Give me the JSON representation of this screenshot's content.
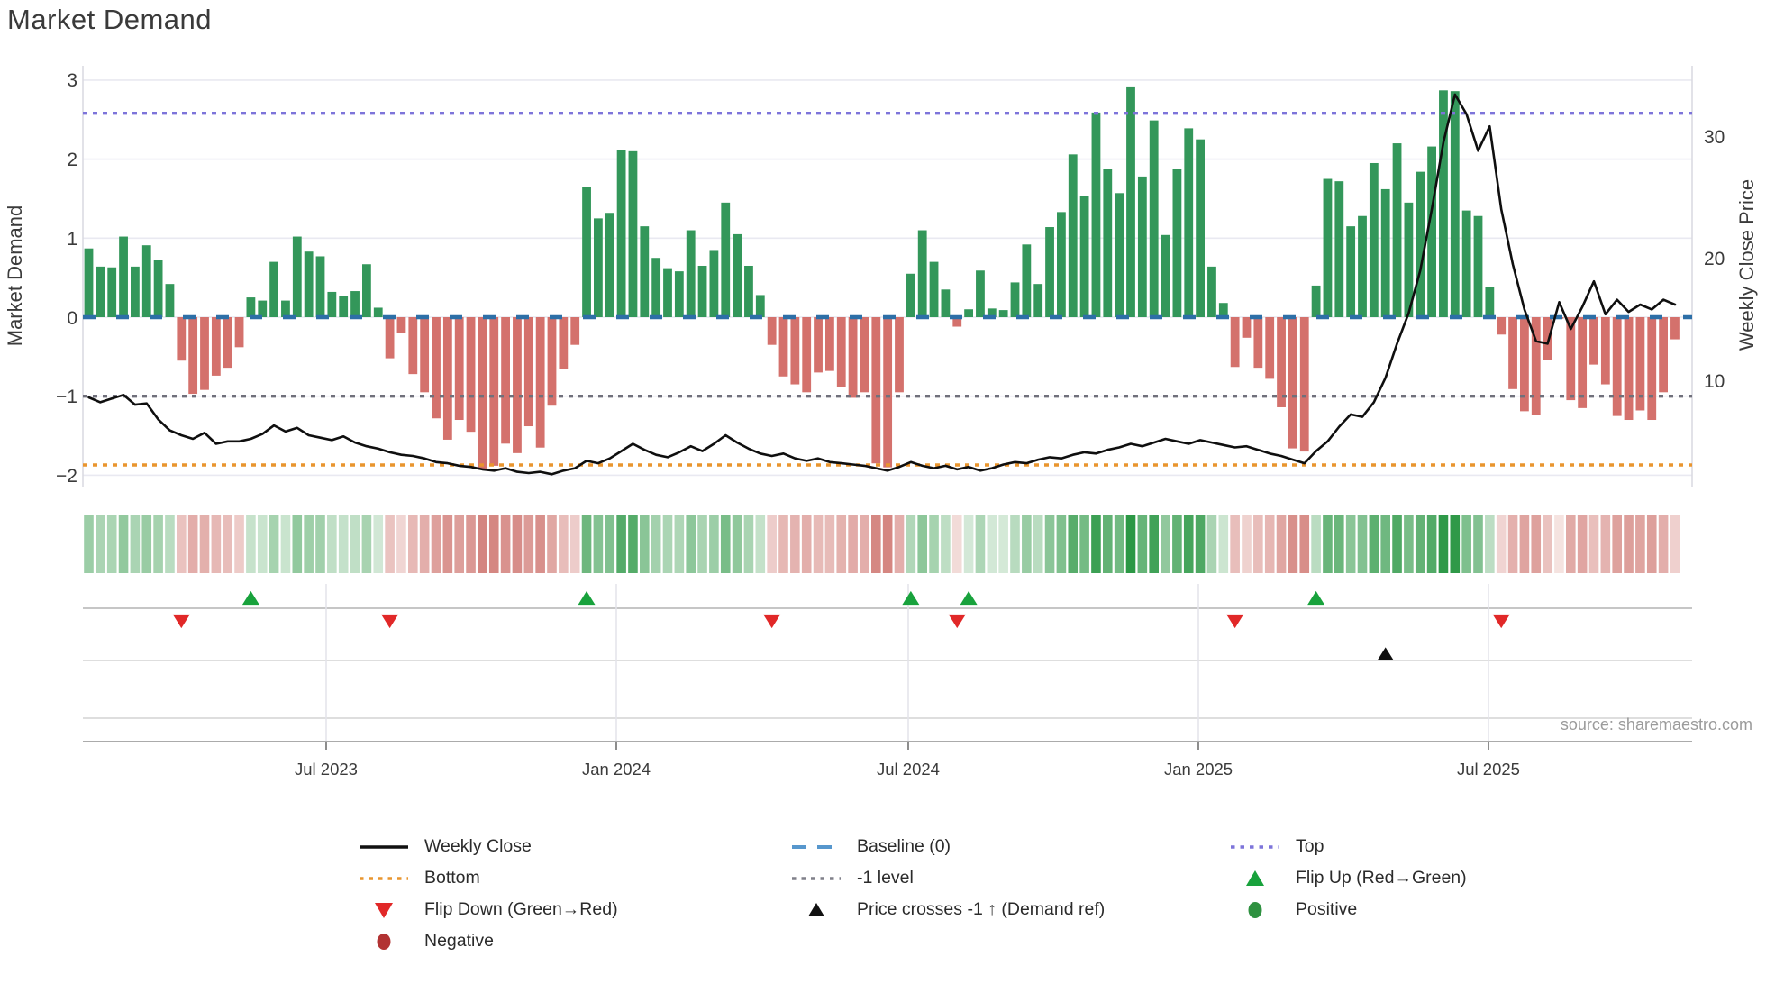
{
  "title": "Market Demand",
  "source_text": "source: sharemaestro.com",
  "colors": {
    "bar_positive": "#33975a",
    "bar_negative": "#d4716c",
    "price_line": "#0f0f0f",
    "baseline": "#2d6fa7",
    "top_line": "#7d74da",
    "minus1_line": "#70707b",
    "bottom_line": "#e9952f",
    "flip_up": "#18a23c",
    "flip_down": "#e12828",
    "price_cross": "#101010",
    "positive_dot": "#2e9140",
    "negative_dot": "#b23333",
    "grid": "#e9e9f1",
    "axis_text": "#3b3b3b",
    "source_text": "#9b9b9b"
  },
  "chart_data": {
    "type": "combo",
    "title": "Market Demand",
    "x_tick_labels": [
      "Jul 2023",
      "Jan 2024",
      "Jul 2024",
      "Jan 2025",
      "Jul 2025"
    ],
    "y_left": {
      "label": "Market Demand",
      "ticks": [
        "3",
        "2",
        "1",
        "0",
        "−1",
        "−2"
      ],
      "tick_values": [
        3,
        2,
        1,
        0,
        -1,
        -2
      ],
      "range": [
        -2.15,
        3.18
      ]
    },
    "y_right": {
      "label": "Weekly Close Price",
      "ticks": [
        "30",
        "20",
        "10"
      ],
      "tick_values": [
        30,
        20,
        10
      ],
      "range": [
        1.3,
        35.8
      ]
    },
    "grid": true,
    "legend_position": "bottom",
    "ref_lines": [
      {
        "name": "Top",
        "value": 2.58,
        "style": "dotted",
        "color": "#7d74da"
      },
      {
        "name": "Baseline (0)",
        "value": 0,
        "style": "dashed",
        "color": "#2d6fa7"
      },
      {
        "name": "-1 level",
        "value": -1,
        "style": "dotted",
        "color": "#70707b"
      },
      {
        "name": "Bottom",
        "value": -1.87,
        "style": "dotted",
        "color": "#e9952f"
      }
    ],
    "series": [
      {
        "name": "Market Demand",
        "type": "bar",
        "axis": "left",
        "values": [
          0.87,
          0.64,
          0.63,
          1.02,
          0.64,
          0.91,
          0.72,
          0.42,
          -0.55,
          -0.97,
          -0.92,
          -0.74,
          -0.64,
          -0.38,
          0.25,
          0.21,
          0.7,
          0.21,
          1.02,
          0.83,
          0.77,
          0.32,
          0.27,
          0.33,
          0.67,
          0.12,
          -0.52,
          -0.2,
          -0.72,
          -0.95,
          -1.28,
          -1.55,
          -1.3,
          -1.45,
          -1.93,
          -1.88,
          -1.6,
          -1.72,
          -1.38,
          -1.65,
          -1.12,
          -0.65,
          -0.35,
          1.65,
          1.25,
          1.32,
          2.12,
          2.1,
          1.15,
          0.75,
          0.62,
          0.58,
          1.1,
          0.65,
          0.85,
          1.45,
          1.05,
          0.65,
          0.28,
          -0.35,
          -0.75,
          -0.85,
          -0.95,
          -0.7,
          -0.68,
          -0.88,
          -1.02,
          -0.95,
          -1.85,
          -1.9,
          -0.95,
          0.55,
          1.1,
          0.7,
          0.35,
          -0.12,
          0.1,
          0.59,
          0.11,
          0.09,
          0.44,
          0.92,
          0.42,
          1.14,
          1.33,
          2.06,
          1.53,
          2.59,
          1.87,
          1.57,
          2.92,
          1.78,
          2.49,
          1.04,
          1.87,
          2.39,
          2.25,
          0.64,
          0.18,
          -0.63,
          -0.26,
          -0.64,
          -0.78,
          -1.14,
          -1.66,
          -1.7,
          0.4,
          1.75,
          1.72,
          1.15,
          1.28,
          1.95,
          1.62,
          2.2,
          1.45,
          1.84,
          2.16,
          2.87,
          2.86,
          1.35,
          1.28,
          0.38,
          -0.22,
          -0.91,
          -1.19,
          -1.24,
          -0.54,
          -0.02,
          -1.05,
          -1.15,
          -0.6,
          -0.85,
          -1.25,
          -1.3,
          -1.18,
          -1.3,
          -0.95,
          -0.28
        ]
      },
      {
        "name": "Weekly Close",
        "type": "line",
        "axis": "right",
        "values": [
          8.6,
          8.2,
          8.5,
          8.8,
          8.0,
          8.1,
          6.8,
          5.9,
          5.5,
          5.2,
          5.7,
          4.8,
          5.0,
          5.0,
          5.2,
          5.6,
          6.3,
          5.8,
          6.1,
          5.5,
          5.3,
          5.1,
          5.4,
          4.9,
          4.6,
          4.4,
          4.1,
          3.9,
          3.8,
          3.6,
          3.3,
          3.2,
          3.0,
          2.9,
          2.7,
          2.6,
          2.8,
          2.5,
          2.4,
          2.5,
          2.3,
          2.6,
          2.8,
          3.4,
          3.2,
          3.6,
          4.2,
          4.8,
          4.3,
          3.9,
          3.7,
          4.1,
          4.6,
          4.2,
          4.8,
          5.5,
          4.9,
          4.4,
          4.0,
          3.8,
          4.0,
          3.6,
          3.4,
          3.6,
          3.3,
          3.2,
          3.1,
          3.0,
          2.8,
          2.6,
          2.9,
          3.3,
          3.0,
          2.8,
          3.0,
          2.7,
          2.9,
          2.6,
          2.8,
          3.1,
          3.3,
          3.2,
          3.5,
          3.7,
          3.6,
          3.9,
          4.1,
          4.0,
          4.3,
          4.5,
          4.8,
          4.6,
          4.9,
          5.2,
          5.0,
          4.8,
          5.1,
          4.9,
          4.7,
          4.5,
          4.6,
          4.3,
          4.0,
          3.8,
          3.5,
          3.2,
          4.2,
          5.0,
          6.2,
          7.2,
          7.0,
          8.2,
          10.2,
          13.0,
          15.5,
          19.0,
          24.0,
          29.5,
          33.4,
          31.8,
          28.8,
          30.8,
          24.0,
          19.5,
          15.8,
          13.2,
          13.0,
          16.4,
          14.2,
          16.0,
          18.1,
          15.4,
          16.6,
          15.6,
          16.2,
          15.8,
          16.6,
          16.2
        ]
      }
    ],
    "markers": {
      "flip_up_weeks": [
        14,
        43,
        71,
        76,
        106
      ],
      "flip_down_weeks": [
        8,
        26,
        59,
        75,
        99,
        122
      ],
      "price_cross_weeks": [
        112
      ]
    },
    "heatmap_note": "strip cells mirror weekly demand sign and intensity (green positive, red negative)"
  },
  "legend": {
    "items": [
      {
        "label": "Weekly Close",
        "swatch": "line-black"
      },
      {
        "label": "Baseline (0)",
        "swatch": "dash-blue"
      },
      {
        "label": "Top",
        "swatch": "dot-purple"
      },
      {
        "label": "Bottom",
        "swatch": "dot-orange"
      },
      {
        "label": "-1 level",
        "swatch": "dot-gray"
      },
      {
        "label": "Flip Up (Red→Green)",
        "swatch": "tri-up-green"
      },
      {
        "label": "Flip Down (Green→Red)",
        "swatch": "tri-down-red"
      },
      {
        "label": "Price crosses -1 ↑ (Demand ref)",
        "swatch": "tri-up-black"
      },
      {
        "label": "Positive",
        "swatch": "circle-green"
      },
      {
        "label": "Negative",
        "swatch": "circle-red"
      }
    ]
  }
}
